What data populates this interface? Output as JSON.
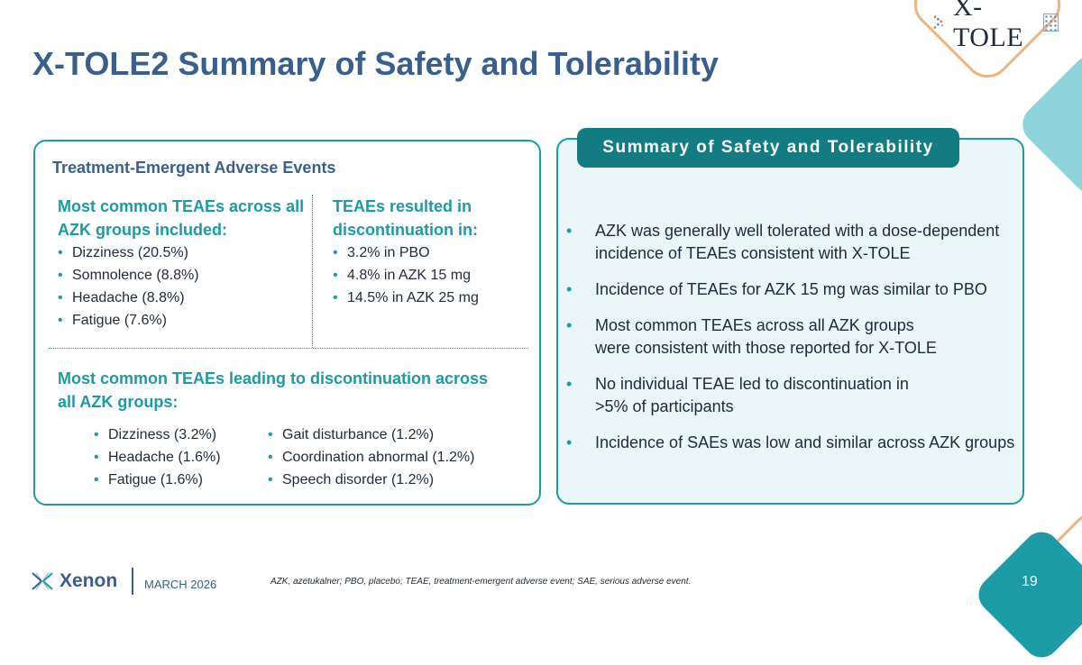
{
  "brand": {
    "product_logo": "X-TOLE",
    "company_logo": "Xenon",
    "colors": {
      "title": "#3b5f8c",
      "accent": "#1c9aa6",
      "header_bg": "#137c82",
      "deco_orange": "#f2b27e"
    }
  },
  "title": "X-TOLE2 Summary of Safety and Tolerability",
  "left_panel": {
    "heading": "Treatment-Emergent Adverse Events",
    "col1": {
      "heading_line1": "Most common TEAEs across all",
      "heading_line2": "AZK groups included:",
      "items": [
        "Dizziness (20.5%)",
        "Somnolence (8.8%)",
        "Headache (8.8%)",
        "Fatigue (7.6%)"
      ]
    },
    "col2": {
      "heading_line1": "TEAEs resulted in",
      "heading_line2": "discontinuation in:",
      "items": [
        "3.2% in PBO",
        "4.8% in AZK 15 mg",
        "14.5% in AZK 25 mg"
      ]
    },
    "bottom": {
      "heading_line1": "Most common TEAEs leading to discontinuation across",
      "heading_line2": "all AZK groups:",
      "col_a": [
        "Dizziness (3.2%)",
        "Headache (1.6%)",
        "Fatigue (1.6%)"
      ],
      "col_b": [
        "Gait disturbance (1.2%)",
        "Coordination abnormal (1.2%)",
        "Speech disorder (1.2%)"
      ]
    }
  },
  "right_panel": {
    "header": "Summary of Safety and Tolerability",
    "items": [
      {
        "line1": "AZK was generally well tolerated with a dose-dependent",
        "line2": "incidence of TEAEs consistent with X-TOLE"
      },
      {
        "line1": "Incidence of TEAEs for AZK 15 mg was similar to PBO",
        "line2": ""
      },
      {
        "line1": "Most common TEAEs across all AZK groups",
        "line2": "were consistent with those reported for X-TOLE"
      },
      {
        "line1": "No individual TEAE led to discontinuation in",
        "line2": ">5% of participants"
      },
      {
        "line1": "Incidence of SAEs was low and similar across AZK groups",
        "line2": ""
      }
    ]
  },
  "footer": {
    "date": "MARCH 2026",
    "footnote": "AZK, azetukalner; PBO, placebo; TEAE, treatment-emergent adverse event; SAE, serious adverse event.",
    "page_number": "19"
  }
}
